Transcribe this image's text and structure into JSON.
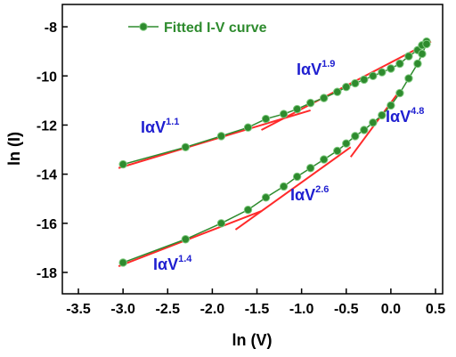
{
  "chart_data": {
    "type": "line",
    "x_label": "ln (V)",
    "y_label": "ln (I)",
    "xlim": [
      -3.68,
      0.58
    ],
    "ylim": [
      -18.87,
      -7.09
    ],
    "xticks": [
      {
        "value": -3.5,
        "label": "-3.5"
      },
      {
        "value": -3,
        "label": "-3.0"
      },
      -2.5,
      {
        "value": -2,
        "label": "-2.0"
      },
      -1.5,
      {
        "value": -1,
        "label": "-1.0"
      },
      -0.5,
      {
        "value": 0,
        "label": "0.0"
      },
      0.5
    ],
    "yticks": [
      -18,
      -16,
      -14,
      -12,
      -10,
      -8
    ],
    "legend": "upper left",
    "series": [
      {
        "name": "Fitted I-V curve",
        "color": "#2e8b2e",
        "x": [
          -3.0,
          -2.3,
          -1.9,
          -1.6,
          -1.4,
          -1.2,
          -1.05,
          -0.9,
          -0.75,
          -0.6,
          -0.5,
          -0.4,
          -0.3,
          -0.2,
          -0.1,
          0.0,
          0.1,
          0.2,
          0.3,
          0.35,
          0.4,
          null,
          -3.0,
          -2.3,
          -1.9,
          -1.6,
          -1.4,
          -1.2,
          -1.05,
          -0.9,
          -0.75,
          -0.6,
          -0.5,
          -0.4,
          -0.3,
          -0.2,
          -0.1,
          0.0,
          0.1,
          0.2,
          0.3,
          0.35,
          0.4
        ],
        "values": [
          -13.6,
          -12.9,
          -12.45,
          -12.1,
          -11.75,
          -11.55,
          -11.35,
          -11.1,
          -10.9,
          -10.65,
          -10.45,
          -10.3,
          -10.15,
          -10.0,
          -9.85,
          -9.7,
          -9.5,
          -9.2,
          -8.95,
          -8.75,
          -8.6,
          null,
          -17.6,
          -16.65,
          -16.0,
          -15.45,
          -14.95,
          -14.5,
          -14.1,
          -13.75,
          -13.4,
          -13.05,
          -12.75,
          -12.45,
          -12.2,
          -11.9,
          -11.6,
          -11.2,
          -10.7,
          -10.1,
          -9.5,
          -9.1,
          -8.7
        ]
      }
    ],
    "fit_color": "#ff2a2a",
    "fits": [
      {
        "label": "IαV",
        "exponent": "1.1",
        "x": [
          -3.05,
          -0.9
        ],
        "y": [
          -13.75,
          -11.4
        ]
      },
      {
        "label": "IαV",
        "exponent": "1.9",
        "x": [
          -1.45,
          0.45
        ],
        "y": [
          -12.2,
          -8.6
        ]
      },
      {
        "label": "IαV",
        "exponent": "4.8",
        "x": [
          -0.45,
          0.1
        ],
        "y": [
          -13.3,
          -10.6
        ]
      },
      {
        "label": "IαV",
        "exponent": "2.6",
        "x": [
          -1.74,
          -0.45
        ],
        "y": [
          -16.26,
          -12.9
        ]
      },
      {
        "label": "IαV",
        "exponent": "1.4",
        "x": [
          -3.05,
          -1.45
        ],
        "y": [
          -17.75,
          -15.5
        ]
      }
    ],
    "annotation_color": "#1f1fd0"
  }
}
